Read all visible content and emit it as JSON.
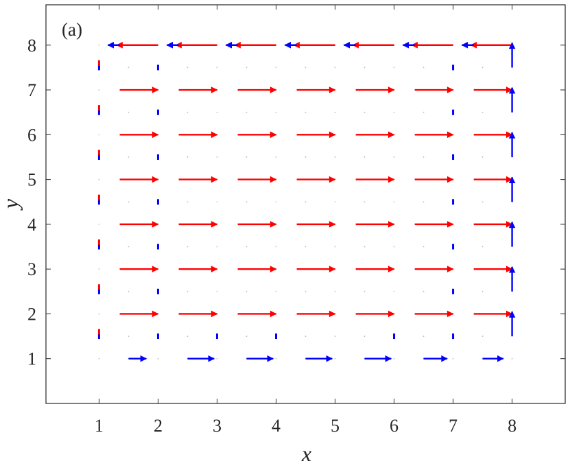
{
  "chart_data": {
    "type": "quiver",
    "panel_label": "(a)",
    "xlabel": "x",
    "ylabel": "y",
    "xlim": [
      0.1,
      8.9
    ],
    "ylim": [
      0.0,
      8.9
    ],
    "xticks": [
      "1",
      "2",
      "3",
      "4",
      "5",
      "6",
      "7",
      "8"
    ],
    "yticks": [
      "1",
      "2",
      "3",
      "4",
      "5",
      "6",
      "7",
      "8"
    ],
    "grid": false,
    "legend": "none",
    "colors": {
      "red": "#ff0000",
      "blue": "#0000ff",
      "dot": "#bdbdbd",
      "axis": "#262626"
    },
    "series": [
      {
        "color": "red",
        "vectors": [
          {
            "x": 2.0,
            "y": 8.0,
            "u": -0.7,
            "v": 0.0
          },
          {
            "x": 3.0,
            "y": 8.0,
            "u": -0.7,
            "v": 0.0
          },
          {
            "x": 4.0,
            "y": 8.0,
            "u": -0.7,
            "v": 0.0
          },
          {
            "x": 5.0,
            "y": 8.0,
            "u": -0.7,
            "v": 0.0
          },
          {
            "x": 6.0,
            "y": 8.0,
            "u": -0.7,
            "v": 0.0
          },
          {
            "x": 7.0,
            "y": 8.0,
            "u": -0.7,
            "v": 0.0
          },
          {
            "x": 8.0,
            "y": 8.0,
            "u": -0.7,
            "v": 0.0
          },
          {
            "x": 1.35,
            "y": 7.0,
            "u": 0.65,
            "v": 0.0
          },
          {
            "x": 2.35,
            "y": 7.0,
            "u": 0.65,
            "v": 0.0
          },
          {
            "x": 3.35,
            "y": 7.0,
            "u": 0.65,
            "v": 0.0
          },
          {
            "x": 4.35,
            "y": 7.0,
            "u": 0.65,
            "v": 0.0
          },
          {
            "x": 5.35,
            "y": 7.0,
            "u": 0.65,
            "v": 0.0
          },
          {
            "x": 6.35,
            "y": 7.0,
            "u": 0.65,
            "v": 0.0
          },
          {
            "x": 7.35,
            "y": 7.0,
            "u": 0.65,
            "v": 0.0
          },
          {
            "x": 1.35,
            "y": 6.0,
            "u": 0.65,
            "v": 0.0
          },
          {
            "x": 2.35,
            "y": 6.0,
            "u": 0.65,
            "v": 0.0
          },
          {
            "x": 3.35,
            "y": 6.0,
            "u": 0.65,
            "v": 0.0
          },
          {
            "x": 4.35,
            "y": 6.0,
            "u": 0.65,
            "v": 0.0
          },
          {
            "x": 5.35,
            "y": 6.0,
            "u": 0.65,
            "v": 0.0
          },
          {
            "x": 6.35,
            "y": 6.0,
            "u": 0.65,
            "v": 0.0
          },
          {
            "x": 7.35,
            "y": 6.0,
            "u": 0.65,
            "v": 0.0
          },
          {
            "x": 1.35,
            "y": 5.0,
            "u": 0.65,
            "v": 0.0
          },
          {
            "x": 2.35,
            "y": 5.0,
            "u": 0.65,
            "v": 0.0
          },
          {
            "x": 3.35,
            "y": 5.0,
            "u": 0.65,
            "v": 0.0
          },
          {
            "x": 4.35,
            "y": 5.0,
            "u": 0.65,
            "v": 0.0
          },
          {
            "x": 5.35,
            "y": 5.0,
            "u": 0.65,
            "v": 0.0
          },
          {
            "x": 6.35,
            "y": 5.0,
            "u": 0.65,
            "v": 0.0
          },
          {
            "x": 7.35,
            "y": 5.0,
            "u": 0.65,
            "v": 0.0
          },
          {
            "x": 1.35,
            "y": 4.0,
            "u": 0.65,
            "v": 0.0
          },
          {
            "x": 2.35,
            "y": 4.0,
            "u": 0.65,
            "v": 0.0
          },
          {
            "x": 3.35,
            "y": 4.0,
            "u": 0.65,
            "v": 0.0
          },
          {
            "x": 4.35,
            "y": 4.0,
            "u": 0.65,
            "v": 0.0
          },
          {
            "x": 5.35,
            "y": 4.0,
            "u": 0.65,
            "v": 0.0
          },
          {
            "x": 6.35,
            "y": 4.0,
            "u": 0.65,
            "v": 0.0
          },
          {
            "x": 7.35,
            "y": 4.0,
            "u": 0.65,
            "v": 0.0
          },
          {
            "x": 1.35,
            "y": 3.0,
            "u": 0.65,
            "v": 0.0
          },
          {
            "x": 2.35,
            "y": 3.0,
            "u": 0.65,
            "v": 0.0
          },
          {
            "x": 3.35,
            "y": 3.0,
            "u": 0.65,
            "v": 0.0
          },
          {
            "x": 4.35,
            "y": 3.0,
            "u": 0.65,
            "v": 0.0
          },
          {
            "x": 5.35,
            "y": 3.0,
            "u": 0.65,
            "v": 0.0
          },
          {
            "x": 6.35,
            "y": 3.0,
            "u": 0.65,
            "v": 0.0
          },
          {
            "x": 7.35,
            "y": 3.0,
            "u": 0.65,
            "v": 0.0
          },
          {
            "x": 1.35,
            "y": 2.0,
            "u": 0.65,
            "v": 0.0
          },
          {
            "x": 2.35,
            "y": 2.0,
            "u": 0.65,
            "v": 0.0
          },
          {
            "x": 3.35,
            "y": 2.0,
            "u": 0.65,
            "v": 0.0
          },
          {
            "x": 4.35,
            "y": 2.0,
            "u": 0.65,
            "v": 0.0
          },
          {
            "x": 5.35,
            "y": 2.0,
            "u": 0.65,
            "v": 0.0
          },
          {
            "x": 6.35,
            "y": 2.0,
            "u": 0.65,
            "v": 0.0
          },
          {
            "x": 7.35,
            "y": 2.0,
            "u": 0.65,
            "v": 0.0
          }
        ]
      },
      {
        "color": "blue",
        "vectors": [
          {
            "x": 1.5,
            "y": 1.0,
            "u": 0.3,
            "v": 0.0
          },
          {
            "x": 2.5,
            "y": 1.0,
            "u": 0.45,
            "v": 0.0
          },
          {
            "x": 3.5,
            "y": 1.0,
            "u": 0.45,
            "v": 0.0
          },
          {
            "x": 4.5,
            "y": 1.0,
            "u": 0.45,
            "v": 0.0
          },
          {
            "x": 5.5,
            "y": 1.0,
            "u": 0.45,
            "v": 0.0
          },
          {
            "x": 6.5,
            "y": 1.0,
            "u": 0.4,
            "v": 0.0
          },
          {
            "x": 7.5,
            "y": 1.0,
            "u": 0.35,
            "v": 0.0
          },
          {
            "x": 8.0,
            "y": 1.5,
            "u": 0.0,
            "v": 0.55
          },
          {
            "x": 8.0,
            "y": 2.5,
            "u": 0.0,
            "v": 0.55
          },
          {
            "x": 8.0,
            "y": 3.5,
            "u": 0.0,
            "v": 0.55
          },
          {
            "x": 8.0,
            "y": 4.5,
            "u": 0.0,
            "v": 0.55
          },
          {
            "x": 8.0,
            "y": 5.5,
            "u": 0.0,
            "v": 0.55
          },
          {
            "x": 8.0,
            "y": 6.5,
            "u": 0.0,
            "v": 0.55
          },
          {
            "x": 8.0,
            "y": 7.5,
            "u": 0.0,
            "v": 0.55
          },
          {
            "x": 1.35,
            "y": 8.0,
            "u": -0.2,
            "v": 0.0
          },
          {
            "x": 2.35,
            "y": 8.0,
            "u": -0.2,
            "v": 0.0
          },
          {
            "x": 3.35,
            "y": 8.0,
            "u": -0.2,
            "v": 0.0
          },
          {
            "x": 4.35,
            "y": 8.0,
            "u": -0.2,
            "v": 0.0
          },
          {
            "x": 5.35,
            "y": 8.0,
            "u": -0.2,
            "v": 0.0
          },
          {
            "x": 6.35,
            "y": 8.0,
            "u": -0.2,
            "v": 0.0
          },
          {
            "x": 7.35,
            "y": 8.0,
            "u": -0.2,
            "v": 0.0
          }
        ]
      }
    ],
    "small_markers": [
      {
        "x": 1.0,
        "y": 1.5,
        "color": "blue"
      },
      {
        "x": 1.0,
        "y": 2.5,
        "color": "blue"
      },
      {
        "x": 1.0,
        "y": 3.5,
        "color": "blue"
      },
      {
        "x": 1.0,
        "y": 4.5,
        "color": "blue"
      },
      {
        "x": 1.0,
        "y": 5.5,
        "color": "blue"
      },
      {
        "x": 1.0,
        "y": 6.5,
        "color": "blue"
      },
      {
        "x": 1.0,
        "y": 7.5,
        "color": "blue"
      },
      {
        "x": 1.0,
        "y": 1.6,
        "color": "red"
      },
      {
        "x": 1.0,
        "y": 2.6,
        "color": "red"
      },
      {
        "x": 1.0,
        "y": 3.6,
        "color": "red"
      },
      {
        "x": 1.0,
        "y": 4.6,
        "color": "red"
      },
      {
        "x": 1.0,
        "y": 5.6,
        "color": "red"
      },
      {
        "x": 1.0,
        "y": 6.6,
        "color": "red"
      },
      {
        "x": 1.0,
        "y": 7.6,
        "color": "red"
      },
      {
        "x": 2.0,
        "y": 1.5,
        "color": "blue"
      },
      {
        "x": 2.0,
        "y": 2.5,
        "color": "blue"
      },
      {
        "x": 2.0,
        "y": 3.5,
        "color": "blue"
      },
      {
        "x": 2.0,
        "y": 4.5,
        "color": "blue"
      },
      {
        "x": 2.0,
        "y": 5.5,
        "color": "blue"
      },
      {
        "x": 2.0,
        "y": 6.5,
        "color": "blue"
      },
      {
        "x": 2.0,
        "y": 7.5,
        "color": "blue"
      },
      {
        "x": 3.0,
        "y": 1.5,
        "color": "blue"
      },
      {
        "x": 4.0,
        "y": 1.5,
        "color": "blue"
      },
      {
        "x": 6.0,
        "y": 1.5,
        "color": "blue"
      },
      {
        "x": 7.0,
        "y": 1.5,
        "color": "blue"
      },
      {
        "x": 7.0,
        "y": 2.5,
        "color": "blue"
      },
      {
        "x": 7.0,
        "y": 3.5,
        "color": "blue"
      },
      {
        "x": 7.0,
        "y": 4.5,
        "color": "blue"
      },
      {
        "x": 7.0,
        "y": 5.5,
        "color": "blue"
      },
      {
        "x": 7.0,
        "y": 6.5,
        "color": "blue"
      },
      {
        "x": 7.0,
        "y": 7.5,
        "color": "blue"
      }
    ]
  }
}
